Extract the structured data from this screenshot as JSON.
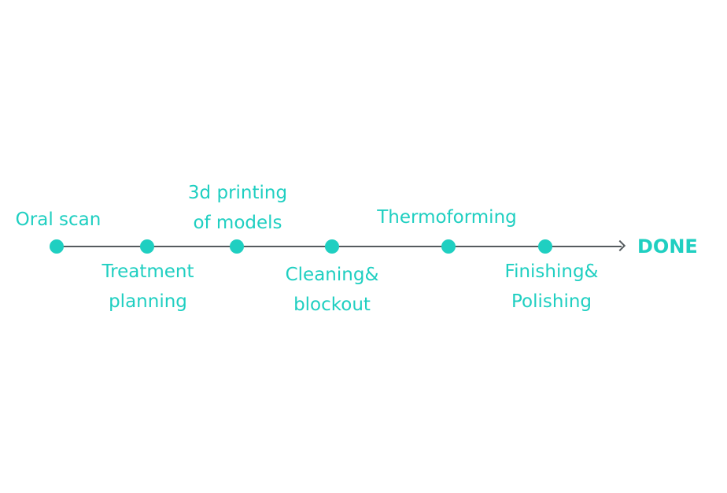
{
  "steps": [
    {
      "lines": [
        "Oral scan"
      ]
    },
    {
      "lines": [
        "Treatment",
        "planning"
      ]
    },
    {
      "lines": [
        "3d printing",
        "of models"
      ]
    },
    {
      "lines": [
        "Cleaning&",
        "blockout"
      ]
    },
    {
      "lines": [
        "Thermoforming"
      ]
    },
    {
      "lines": [
        "Finishing&",
        "Polishing"
      ]
    }
  ],
  "end_label": "DONE",
  "colors": {
    "accent": "#1fcfc1",
    "line": "#555b5f",
    "background": "#ffffff"
  }
}
